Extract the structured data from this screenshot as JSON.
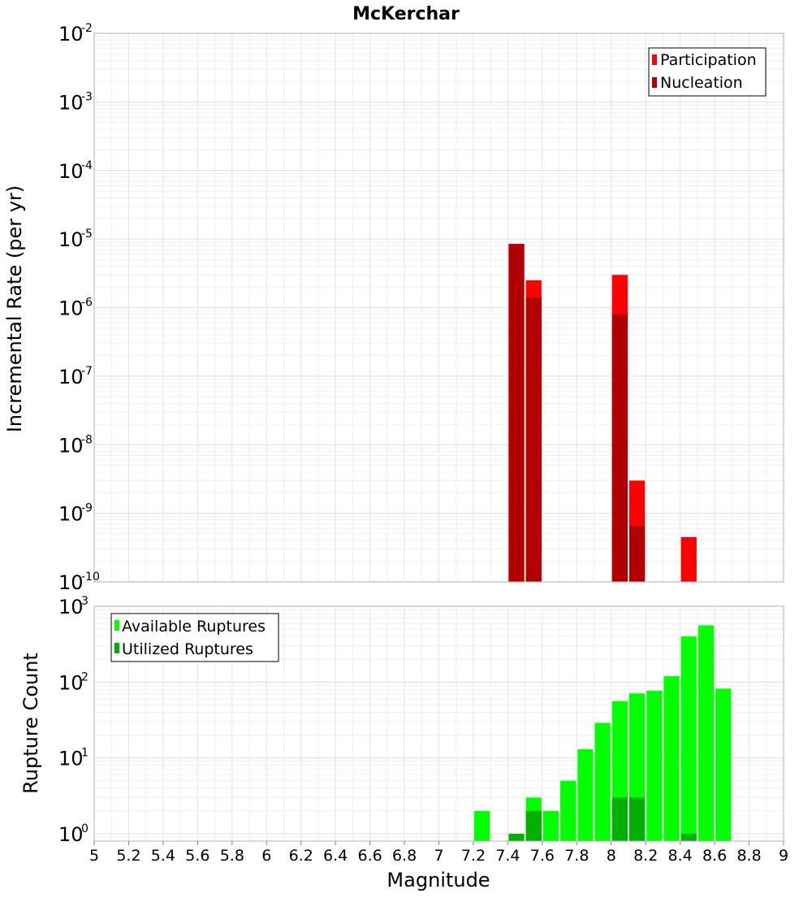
{
  "chart_data": [
    {
      "type": "bar",
      "title": "McKerchar",
      "xlabel": "Magnitude",
      "ylabel": "Incremental Rate (per yr)",
      "yscale": "log",
      "ylim": [
        1e-10,
        0.01
      ],
      "xlim": [
        5,
        9
      ],
      "grid": true,
      "legend_position": "top-right",
      "yticks": [
        {
          "base": "10",
          "exp": "-2",
          "value": 0.01
        },
        {
          "base": "10",
          "exp": "-3",
          "value": 0.001
        },
        {
          "base": "10",
          "exp": "-4",
          "value": 0.0001
        },
        {
          "base": "10",
          "exp": "-5",
          "value": 1e-05
        },
        {
          "base": "10",
          "exp": "-6",
          "value": 1e-06
        },
        {
          "base": "10",
          "exp": "-7",
          "value": 1e-07
        },
        {
          "base": "10",
          "exp": "-8",
          "value": 1e-08
        },
        {
          "base": "10",
          "exp": "-9",
          "value": 1e-09
        },
        {
          "base": "10",
          "exp": "-10",
          "value": 1e-10
        }
      ],
      "series": [
        {
          "name": "Participation",
          "color": "#ff0000",
          "points": [
            {
              "x": 7.45,
              "y": 8.5e-06
            },
            {
              "x": 7.55,
              "y": 2.5e-06
            },
            {
              "x": 8.05,
              "y": 3e-06
            },
            {
              "x": 8.15,
              "y": 3e-09
            },
            {
              "x": 8.45,
              "y": 4.5e-10
            }
          ]
        },
        {
          "name": "Nucleation",
          "color": "#b00000",
          "points": [
            {
              "x": 7.45,
              "y": 8.5e-06
            },
            {
              "x": 7.55,
              "y": 1.4e-06
            },
            {
              "x": 8.05,
              "y": 8e-07
            },
            {
              "x": 8.15,
              "y": 6.5e-10
            }
          ]
        }
      ]
    },
    {
      "type": "bar",
      "xlabel": "Magnitude",
      "ylabel": "Rupture Count",
      "yscale": "log",
      "ylim": [
        0.8,
        1000
      ],
      "xlim": [
        5,
        9
      ],
      "grid": true,
      "legend_position": "top-left",
      "xticks": [
        "5",
        "5.2",
        "5.4",
        "5.6",
        "5.8",
        "6",
        "6.2",
        "6.4",
        "6.6",
        "6.8",
        "7",
        "7.2",
        "7.4",
        "7.6",
        "7.8",
        "8",
        "8.2",
        "8.4",
        "8.6",
        "8.8",
        "9"
      ],
      "yticks": [
        {
          "base": "10",
          "exp": "3",
          "value": 1000
        },
        {
          "base": "10",
          "exp": "2",
          "value": 100
        },
        {
          "base": "10",
          "exp": "1",
          "value": 10
        },
        {
          "base": "10",
          "exp": "0",
          "value": 1
        }
      ],
      "series": [
        {
          "name": "Available Ruptures",
          "color": "#00ff00",
          "points": [
            {
              "x": 7.25,
              "y": 2
            },
            {
              "x": 7.55,
              "y": 3
            },
            {
              "x": 7.65,
              "y": 2
            },
            {
              "x": 7.75,
              "y": 5
            },
            {
              "x": 7.85,
              "y": 13
            },
            {
              "x": 7.95,
              "y": 29
            },
            {
              "x": 8.05,
              "y": 56
            },
            {
              "x": 8.15,
              "y": 71
            },
            {
              "x": 8.25,
              "y": 77
            },
            {
              "x": 8.35,
              "y": 120
            },
            {
              "x": 8.45,
              "y": 400
            },
            {
              "x": 8.55,
              "y": 560
            },
            {
              "x": 8.65,
              "y": 82
            }
          ]
        },
        {
          "name": "Utilized Ruptures",
          "color": "#00b000",
          "points": [
            {
              "x": 7.45,
              "y": 1
            },
            {
              "x": 7.55,
              "y": 2
            },
            {
              "x": 8.05,
              "y": 3
            },
            {
              "x": 8.15,
              "y": 3
            },
            {
              "x": 8.45,
              "y": 1
            }
          ]
        }
      ]
    }
  ]
}
